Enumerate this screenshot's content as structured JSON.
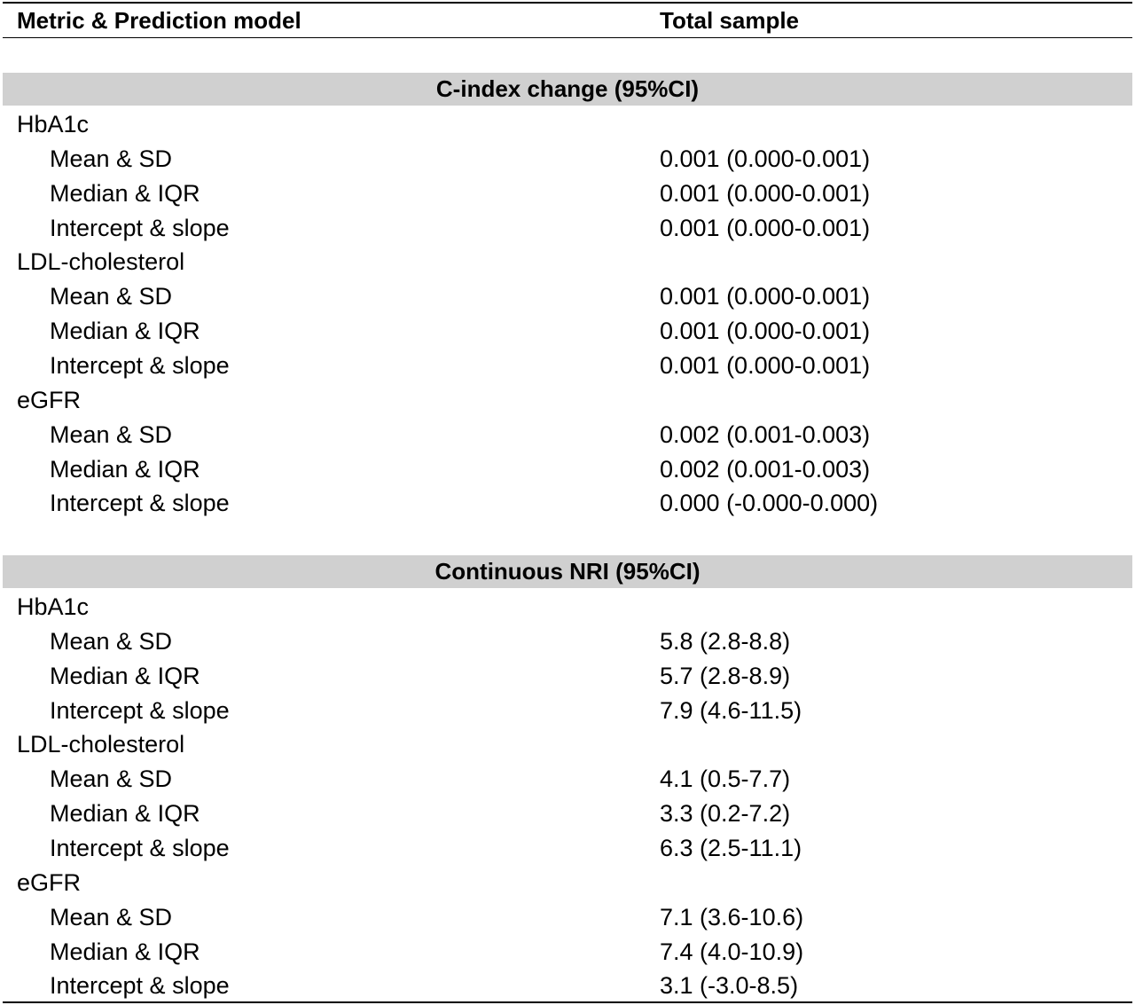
{
  "header": {
    "col1": "Metric & Prediction model",
    "col2": "Total sample"
  },
  "sections": [
    {
      "title": "C-index change (95%CI)",
      "groups": [
        {
          "name": "HbA1c",
          "rows": [
            {
              "label": "Mean & SD",
              "value": "0.001 (0.000-0.001)"
            },
            {
              "label": "Median & IQR",
              "value": "0.001 (0.000-0.001)"
            },
            {
              "label": "Intercept & slope",
              "value": "0.001 (0.000-0.001)"
            }
          ]
        },
        {
          "name": "LDL-cholesterol",
          "rows": [
            {
              "label": "Mean & SD",
              "value": "0.001 (0.000-0.001)"
            },
            {
              "label": "Median & IQR",
              "value": "0.001 (0.000-0.001)"
            },
            {
              "label": "Intercept & slope",
              "value": "0.001 (0.000-0.001)"
            }
          ]
        },
        {
          "name": "eGFR",
          "rows": [
            {
              "label": "Mean & SD",
              "value": "0.002 (0.001-0.003)"
            },
            {
              "label": "Median & IQR",
              "value": "0.002 (0.001-0.003)"
            },
            {
              "label": "Intercept & slope",
              "value": "0.000 (-0.000-0.000)"
            }
          ]
        }
      ]
    },
    {
      "title": "Continuous NRI (95%CI)",
      "groups": [
        {
          "name": "HbA1c",
          "rows": [
            {
              "label": "Mean & SD",
              "value": "5.8 (2.8-8.8)"
            },
            {
              "label": "Median & IQR",
              "value": "5.7 (2.8-8.9)"
            },
            {
              "label": "Intercept & slope",
              "value": "7.9 (4.6-11.5)"
            }
          ]
        },
        {
          "name": "LDL-cholesterol",
          "rows": [
            {
              "label": "Mean & SD",
              "value": "4.1 (0.5-7.7)"
            },
            {
              "label": "Median & IQR",
              "value": "3.3 (0.2-7.2)"
            },
            {
              "label": "Intercept & slope",
              "value": "6.3 (2.5-11.1)"
            }
          ]
        },
        {
          "name": "eGFR",
          "rows": [
            {
              "label": "Mean & SD",
              "value": "7.1 (3.6-10.6)"
            },
            {
              "label": "Median & IQR",
              "value": "7.4 (4.0-10.9)"
            },
            {
              "label": "Intercept & slope",
              "value": "3.1 (-3.0-8.5)"
            }
          ]
        }
      ]
    }
  ]
}
